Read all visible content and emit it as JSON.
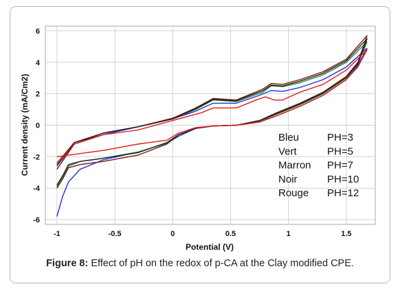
{
  "figure": {
    "caption_label": "Figure 8:",
    "caption_text": " Effect of pH on the redox of p-CA at the Clay modified CPE."
  },
  "chart_data": {
    "type": "line",
    "xlabel": "Potential (V)",
    "ylabel": "Current density (mA/Cm2)",
    "xlim": [
      -1.1,
      1.75
    ],
    "ylim": [
      -6.3,
      6.3
    ],
    "x_ticks": [
      -1,
      -0.5,
      0,
      0.5,
      1,
      1.5
    ],
    "x_tick_labels": [
      "-1",
      "-0.5",
      "0",
      "0.5",
      "1",
      "1.5"
    ],
    "y_ticks": [
      -6,
      -4,
      -2,
      0,
      2,
      4,
      6
    ],
    "y_tick_labels": [
      "-6",
      "-4",
      "-2",
      "0",
      "2",
      "4",
      "6"
    ],
    "grid": true,
    "legend_position": "bottom-right",
    "legend": [
      {
        "name": "Bleu",
        "label": "PH=3",
        "color": "#1f2fe0"
      },
      {
        "name": "Vert",
        "label": "PH=5",
        "color": "#1f8f2f"
      },
      {
        "name": "Marron",
        "label": "PH=7",
        "color": "#7a1414"
      },
      {
        "name": "Noir",
        "label": "PH=10",
        "color": "#222222"
      },
      {
        "name": "Rouge",
        "label": "PH=12",
        "color": "#e41a1a"
      }
    ],
    "series": [
      {
        "name": "Bleu",
        "color": "#1f2fe0",
        "forward": [
          [
            -1,
            -5.8
          ],
          [
            -0.95,
            -4.5
          ],
          [
            -0.9,
            -3.6
          ],
          [
            -0.8,
            -2.8
          ],
          [
            -0.6,
            -2.2
          ],
          [
            -0.3,
            -1.7
          ],
          [
            -0.05,
            -1.15
          ],
          [
            0.05,
            -0.7
          ],
          [
            0.2,
            -0.2
          ],
          [
            0.35,
            -0.05
          ],
          [
            0.55,
            0.0
          ],
          [
            0.75,
            0.2
          ],
          [
            0.9,
            0.6
          ],
          [
            1.1,
            1.2
          ],
          [
            1.3,
            1.9
          ],
          [
            1.5,
            2.9
          ],
          [
            1.6,
            3.8
          ],
          [
            1.68,
            4.9
          ]
        ],
        "reverse": [
          [
            1.68,
            4.9
          ],
          [
            1.5,
            3.7
          ],
          [
            1.3,
            2.9
          ],
          [
            1.1,
            2.4
          ],
          [
            0.95,
            2.15
          ],
          [
            0.85,
            2.2
          ],
          [
            0.75,
            1.9
          ],
          [
            0.55,
            1.4
          ],
          [
            0.35,
            1.4
          ],
          [
            0.2,
            0.9
          ],
          [
            0.0,
            0.4
          ],
          [
            -0.3,
            -0.1
          ],
          [
            -0.6,
            -0.6
          ],
          [
            -0.85,
            -1.2
          ],
          [
            -1,
            -2.6
          ]
        ]
      },
      {
        "name": "Vert",
        "color": "#1f8f2f",
        "forward": [
          [
            -1,
            -3.9
          ],
          [
            -0.95,
            -3.3
          ],
          [
            -0.9,
            -2.6
          ],
          [
            -0.8,
            -2.3
          ],
          [
            -0.6,
            -2.1
          ],
          [
            -0.3,
            -1.7
          ],
          [
            -0.05,
            -1.15
          ],
          [
            0.05,
            -0.6
          ],
          [
            0.2,
            -0.2
          ],
          [
            0.35,
            -0.05
          ],
          [
            0.55,
            0.0
          ],
          [
            0.75,
            0.25
          ],
          [
            0.9,
            0.7
          ],
          [
            1.1,
            1.3
          ],
          [
            1.3,
            2.0
          ],
          [
            1.5,
            3.0
          ],
          [
            1.6,
            3.9
          ],
          [
            1.68,
            5.3
          ]
        ],
        "reverse": [
          [
            1.68,
            5.3
          ],
          [
            1.5,
            4.0
          ],
          [
            1.3,
            3.2
          ],
          [
            1.1,
            2.7
          ],
          [
            0.95,
            2.45
          ],
          [
            0.85,
            2.5
          ],
          [
            0.78,
            2.1
          ],
          [
            0.55,
            1.5
          ],
          [
            0.35,
            1.6
          ],
          [
            0.2,
            1.0
          ],
          [
            0.0,
            0.4
          ],
          [
            -0.3,
            -0.1
          ],
          [
            -0.6,
            -0.5
          ],
          [
            -0.85,
            -1.1
          ],
          [
            -1,
            -2.4
          ]
        ]
      },
      {
        "name": "Marron",
        "color": "#7a1414",
        "forward": [
          [
            -1,
            -4.0
          ],
          [
            -0.95,
            -3.4
          ],
          [
            -0.9,
            -2.7
          ],
          [
            -0.8,
            -2.5
          ],
          [
            -0.6,
            -2.3
          ],
          [
            -0.3,
            -1.9
          ],
          [
            -0.05,
            -1.2
          ],
          [
            0.05,
            -0.6
          ],
          [
            0.2,
            -0.2
          ],
          [
            0.35,
            -0.05
          ],
          [
            0.55,
            0.0
          ],
          [
            0.75,
            0.3
          ],
          [
            0.9,
            0.8
          ],
          [
            1.1,
            1.4
          ],
          [
            1.3,
            2.1
          ],
          [
            1.5,
            3.1
          ],
          [
            1.6,
            4.0
          ],
          [
            1.68,
            5.7
          ]
        ],
        "reverse": [
          [
            1.68,
            5.7
          ],
          [
            1.5,
            4.2
          ],
          [
            1.3,
            3.4
          ],
          [
            1.1,
            2.9
          ],
          [
            0.95,
            2.6
          ],
          [
            0.85,
            2.65
          ],
          [
            0.78,
            2.3
          ],
          [
            0.55,
            1.6
          ],
          [
            0.35,
            1.7
          ],
          [
            0.2,
            1.1
          ],
          [
            0.0,
            0.45
          ],
          [
            -0.3,
            -0.1
          ],
          [
            -0.6,
            -0.5
          ],
          [
            -0.85,
            -1.2
          ],
          [
            -1,
            -2.8
          ]
        ]
      },
      {
        "name": "Noir",
        "color": "#222222",
        "forward": [
          [
            -1,
            -3.8
          ],
          [
            -0.95,
            -3.2
          ],
          [
            -0.9,
            -2.5
          ],
          [
            -0.8,
            -2.3
          ],
          [
            -0.6,
            -2.1
          ],
          [
            -0.3,
            -1.75
          ],
          [
            -0.05,
            -1.1
          ],
          [
            0.05,
            -0.6
          ],
          [
            0.2,
            -0.2
          ],
          [
            0.35,
            -0.05
          ],
          [
            0.55,
            0.0
          ],
          [
            0.75,
            0.3
          ],
          [
            0.9,
            0.75
          ],
          [
            1.1,
            1.35
          ],
          [
            1.3,
            2.05
          ],
          [
            1.5,
            3.05
          ],
          [
            1.6,
            3.9
          ],
          [
            1.68,
            5.5
          ]
        ],
        "reverse": [
          [
            1.68,
            5.5
          ],
          [
            1.5,
            4.1
          ],
          [
            1.3,
            3.3
          ],
          [
            1.1,
            2.8
          ],
          [
            0.95,
            2.5
          ],
          [
            0.85,
            2.55
          ],
          [
            0.78,
            2.2
          ],
          [
            0.55,
            1.55
          ],
          [
            0.35,
            1.65
          ],
          [
            0.2,
            1.05
          ],
          [
            0.0,
            0.4
          ],
          [
            -0.3,
            -0.1
          ],
          [
            -0.6,
            -0.5
          ],
          [
            -0.85,
            -1.1
          ],
          [
            -1,
            -2.5
          ]
        ]
      },
      {
        "name": "Rouge",
        "color": "#e41a1a",
        "forward": [
          [
            -1,
            -2.0
          ],
          [
            -0.8,
            -1.8
          ],
          [
            -0.6,
            -1.6
          ],
          [
            -0.3,
            -1.2
          ],
          [
            -0.05,
            -0.95
          ],
          [
            0.05,
            -0.5
          ],
          [
            0.2,
            -0.15
          ],
          [
            0.35,
            -0.05
          ],
          [
            0.55,
            0.0
          ],
          [
            0.75,
            0.2
          ],
          [
            0.9,
            0.6
          ],
          [
            1.1,
            1.2
          ],
          [
            1.3,
            1.9
          ],
          [
            1.5,
            2.9
          ],
          [
            1.6,
            3.7
          ],
          [
            1.68,
            4.8
          ]
        ],
        "reverse": [
          [
            1.68,
            4.8
          ],
          [
            1.5,
            3.5
          ],
          [
            1.3,
            2.6
          ],
          [
            1.1,
            2.1
          ],
          [
            0.95,
            1.6
          ],
          [
            0.88,
            1.6
          ],
          [
            0.8,
            1.8
          ],
          [
            0.72,
            1.6
          ],
          [
            0.55,
            1.1
          ],
          [
            0.35,
            1.1
          ],
          [
            0.25,
            0.8
          ],
          [
            0.0,
            0.3
          ],
          [
            -0.3,
            -0.3
          ],
          [
            -0.6,
            -0.6
          ],
          [
            -0.85,
            -1.2
          ],
          [
            -1,
            -2.5
          ]
        ]
      }
    ]
  }
}
